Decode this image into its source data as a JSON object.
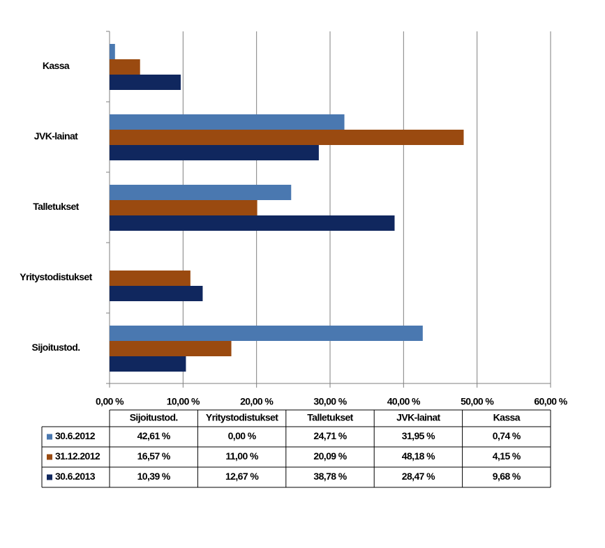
{
  "chart_data": {
    "type": "bar",
    "categories": [
      "Sijoitustod.",
      "Yritystodistukset",
      "Talletukset",
      "JVK-lainat",
      "Kassa"
    ],
    "series": [
      {
        "name": "30.6.2012",
        "color": "#4a78b0",
        "values": [
          42.61,
          0,
          24.71,
          31.95,
          0.74
        ],
        "value_labels": [
          "42,61 %",
          "0,00 %",
          "24,71 %",
          "31,95 %",
          "0,74 %"
        ]
      },
      {
        "name": "31.12.2012",
        "color": "#9a4a10",
        "values": [
          16.57,
          11,
          20.09,
          48.18,
          4.15
        ],
        "value_labels": [
          "16,57 %",
          "11,00 %",
          "20,09 %",
          "48,18 %",
          "4,15 %"
        ]
      },
      {
        "name": "30.6.2013",
        "color": "#10275e",
        "values": [
          10.39,
          12.67,
          38.78,
          28.47,
          9.68
        ],
        "value_labels": [
          "10,39 %",
          "12,67 %",
          "38,78 %",
          "28,47 %",
          "9,68 %"
        ]
      }
    ],
    "xlim": [
      0,
      60
    ],
    "xticks": [
      {
        "value": 0,
        "label": "0,00 %"
      },
      {
        "value": 10,
        "label": "10,00 %"
      },
      {
        "value": 20,
        "label": "20,00 %"
      },
      {
        "value": 30,
        "label": "30,00 %"
      },
      {
        "value": 40,
        "label": "40,00 %"
      },
      {
        "value": 50,
        "label": "50,00 %"
      },
      {
        "value": 60,
        "label": "60,00 %"
      }
    ],
    "grid": true
  }
}
